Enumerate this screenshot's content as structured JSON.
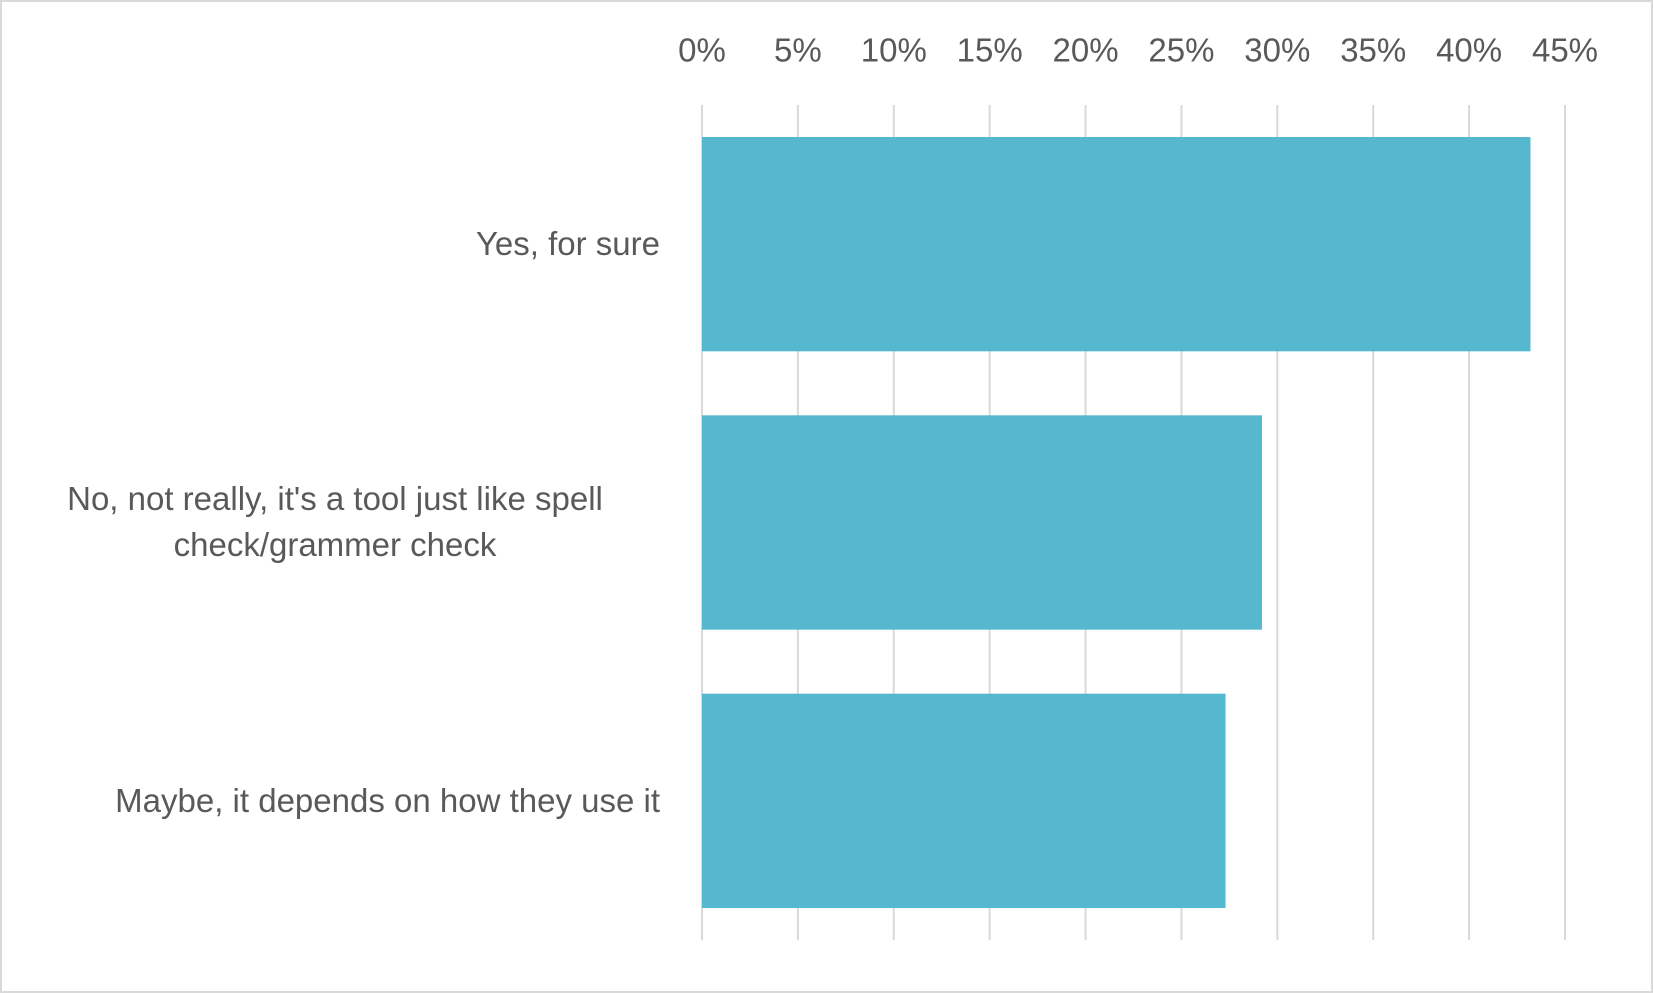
{
  "chart_data": {
    "type": "bar",
    "orientation": "horizontal",
    "categories": [
      "Yes, for sure",
      "No, not really, it's a tool just like spell check/grammer check",
      "Maybe, it depends on how they use it"
    ],
    "values": [
      43.2,
      29.2,
      27.3
    ],
    "color": "#55b8cf",
    "xlim": [
      0,
      45
    ],
    "xticks": [
      {
        "value": 0,
        "label": "0%"
      },
      {
        "value": 5,
        "label": "5%"
      },
      {
        "value": 10,
        "label": "10%"
      },
      {
        "value": 15,
        "label": "15%"
      },
      {
        "value": 20,
        "label": "20%"
      },
      {
        "value": 25,
        "label": "25%"
      },
      {
        "value": 30,
        "label": "30%"
      },
      {
        "value": 35,
        "label": "35%"
      },
      {
        "value": 40,
        "label": "40%"
      },
      {
        "value": 45,
        "label": "45%"
      }
    ],
    "grid": true
  }
}
